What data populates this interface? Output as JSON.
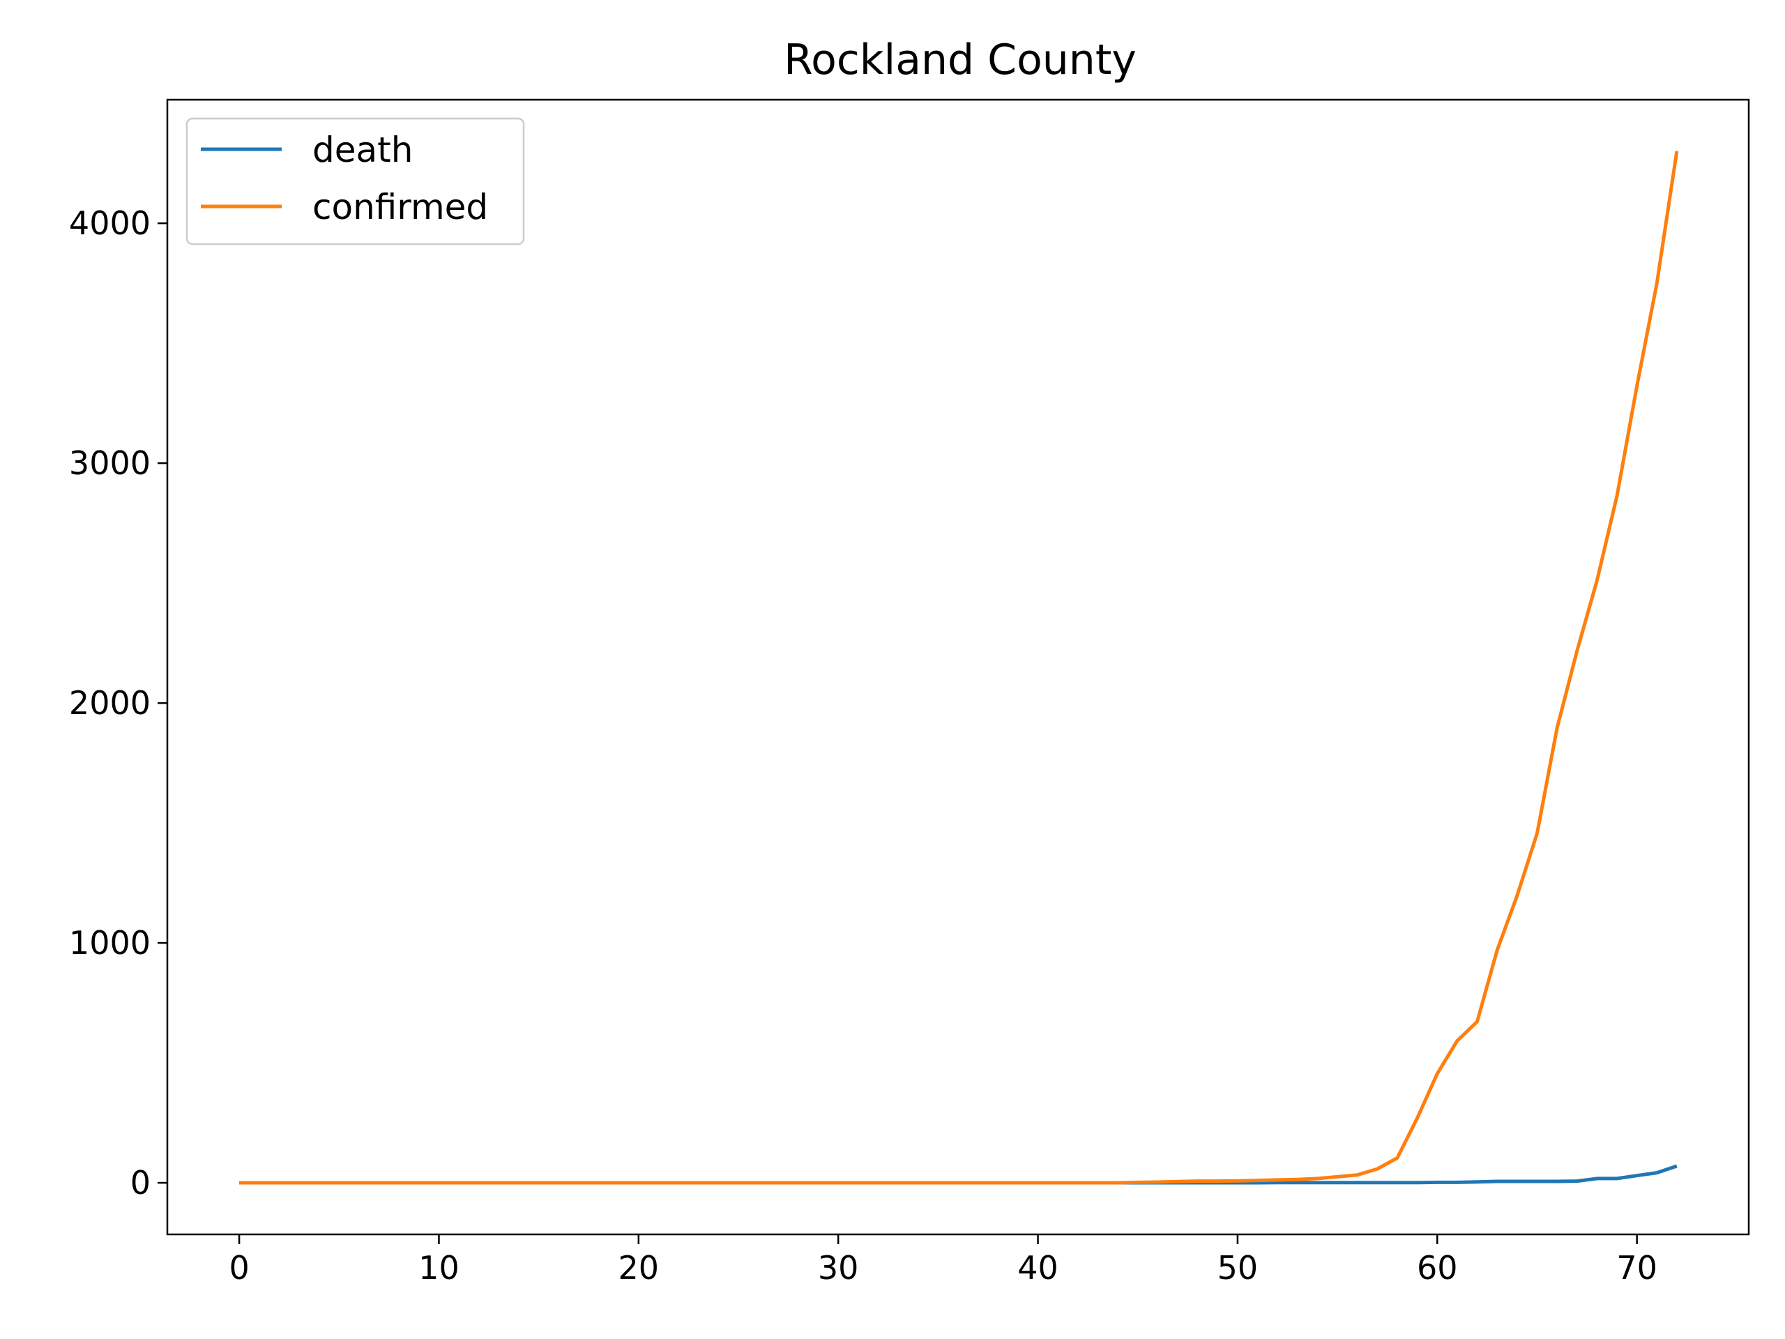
{
  "chart_data": {
    "type": "line",
    "title": "Rockland County",
    "xlabel": "",
    "ylabel": "",
    "xlim": [
      -3.6,
      75.6
    ],
    "ylim": [
      -215,
      4515
    ],
    "xticks": [
      0,
      10,
      20,
      30,
      40,
      50,
      60,
      70
    ],
    "yticks": [
      0,
      1000,
      2000,
      3000,
      4000
    ],
    "legend": "upper-left",
    "grid": false,
    "x": [
      0,
      1,
      2,
      3,
      4,
      5,
      6,
      7,
      8,
      9,
      10,
      11,
      12,
      13,
      14,
      15,
      16,
      17,
      18,
      19,
      20,
      21,
      22,
      23,
      24,
      25,
      26,
      27,
      28,
      29,
      30,
      31,
      32,
      33,
      34,
      35,
      36,
      37,
      38,
      39,
      40,
      41,
      42,
      43,
      44,
      45,
      46,
      47,
      48,
      49,
      50,
      51,
      52,
      53,
      54,
      55,
      56,
      57,
      58,
      59,
      60,
      61,
      62,
      63,
      64,
      65,
      66,
      67,
      68,
      69,
      70,
      71,
      72
    ],
    "series": [
      {
        "name": "death",
        "color": "#1f77b4",
        "values": [
          0,
          0,
          0,
          0,
          0,
          0,
          0,
          0,
          0,
          0,
          0,
          0,
          0,
          0,
          0,
          0,
          0,
          0,
          0,
          0,
          0,
          0,
          0,
          0,
          0,
          0,
          0,
          0,
          0,
          0,
          0,
          0,
          0,
          0,
          0,
          0,
          0,
          0,
          0,
          0,
          0,
          0,
          0,
          0,
          0,
          0,
          0,
          0,
          0,
          0,
          0,
          0,
          1,
          1,
          1,
          1,
          1,
          1,
          1,
          1,
          2,
          2,
          4,
          6,
          6,
          6,
          6,
          7,
          18,
          18,
          30,
          42,
          70
        ]
      },
      {
        "name": "confirmed",
        "color": "#ff7f0e",
        "values": [
          0,
          0,
          0,
          0,
          0,
          0,
          0,
          0,
          0,
          0,
          0,
          0,
          0,
          0,
          0,
          0,
          0,
          0,
          0,
          0,
          0,
          0,
          0,
          0,
          0,
          0,
          0,
          0,
          0,
          0,
          0,
          0,
          0,
          0,
          0,
          0,
          0,
          0,
          0,
          0,
          0,
          0,
          0,
          0,
          0,
          2,
          3,
          5,
          7,
          7,
          8,
          10,
          12,
          14,
          18,
          25,
          33,
          58,
          104,
          270,
          455,
          592,
          672,
          970,
          1197,
          1457,
          1896,
          2217,
          2511,
          2863,
          3321,
          3751,
          4301
        ]
      }
    ]
  }
}
